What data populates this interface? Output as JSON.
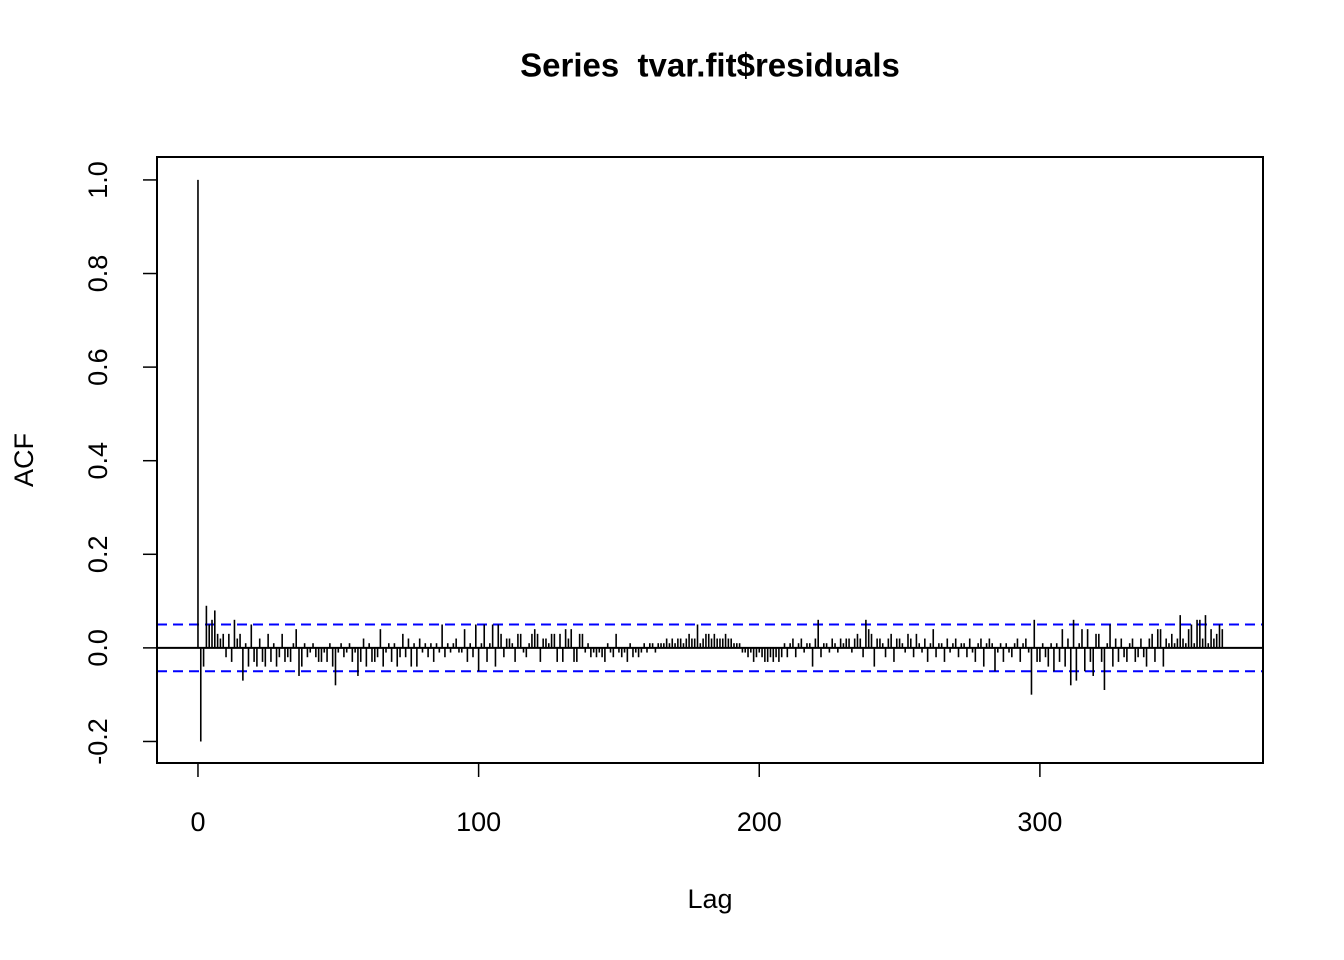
{
  "chart_data": {
    "type": "acf",
    "title": "Series  tvar.fit$residuals",
    "x_label": "Lag",
    "y_label": "ACF",
    "x": [
      0,
      1,
      2,
      3,
      4,
      5,
      6,
      7,
      8,
      9,
      10,
      11,
      12,
      13,
      14,
      15,
      16,
      17,
      18,
      19,
      20,
      21,
      22,
      23,
      24,
      25,
      26,
      27,
      28,
      29,
      30,
      31,
      32,
      33,
      34,
      35,
      36,
      37,
      38,
      39,
      40,
      41,
      42,
      43,
      44,
      45,
      46,
      47,
      48,
      49,
      50,
      51,
      52,
      53,
      54,
      55,
      56,
      57,
      58,
      59,
      60,
      61,
      62,
      63,
      64,
      65,
      66,
      67,
      68,
      69,
      70,
      71,
      72,
      73,
      74,
      75,
      76,
      77,
      78,
      79,
      80,
      81,
      82,
      83,
      84,
      85,
      86,
      87,
      88,
      89,
      90,
      91,
      92,
      93,
      94,
      95,
      96,
      97,
      98,
      99,
      100,
      101,
      102,
      103,
      104,
      105,
      106,
      107,
      108,
      109,
      110,
      111,
      112,
      113,
      114,
      115,
      116,
      117,
      118,
      119,
      120,
      121,
      122,
      123,
      124,
      125,
      126,
      127,
      128,
      129,
      130,
      131,
      132,
      133,
      134,
      135,
      136,
      137,
      138,
      139,
      140,
      141,
      142,
      143,
      144,
      145,
      146,
      147,
      148,
      149,
      150,
      151,
      152,
      153,
      154,
      155,
      156,
      157,
      158,
      159,
      160,
      161,
      162,
      163,
      164,
      165,
      166,
      167,
      168,
      169,
      170,
      171,
      172,
      173,
      174,
      175,
      176,
      177,
      178,
      179,
      180,
      181,
      182,
      183,
      184,
      185,
      186,
      187,
      188,
      189,
      190,
      191,
      192,
      193,
      194,
      195,
      196,
      197,
      198,
      199,
      200,
      201,
      202,
      203,
      204,
      205,
      206,
      207,
      208,
      209,
      210,
      211,
      212,
      213,
      214,
      215,
      216,
      217,
      218,
      219,
      220,
      221,
      222,
      223,
      224,
      225,
      226,
      227,
      228,
      229,
      230,
      231,
      232,
      233,
      234,
      235,
      236,
      237,
      238,
      239,
      240,
      241,
      242,
      243,
      244,
      245,
      246,
      247,
      248,
      249,
      250,
      251,
      252,
      253,
      254,
      255,
      256,
      257,
      258,
      259,
      260,
      261,
      262,
      263,
      264,
      265,
      266,
      267,
      268,
      269,
      270,
      271,
      272,
      273,
      274,
      275,
      276,
      277,
      278,
      279,
      280,
      281,
      282,
      283,
      284,
      285,
      286,
      287,
      288,
      289,
      290,
      291,
      292,
      293,
      294,
      295,
      296,
      297,
      298,
      299,
      300,
      301,
      302,
      303,
      304,
      305,
      306,
      307,
      308,
      309,
      310,
      311,
      312,
      313,
      314,
      315,
      316,
      317,
      318,
      319,
      320,
      321,
      322,
      323,
      324,
      325,
      326,
      327,
      328,
      329,
      330,
      331,
      332,
      333,
      334,
      335,
      336,
      337,
      338,
      339,
      340,
      341,
      342,
      343,
      344,
      345,
      346,
      347,
      348,
      349,
      350,
      351,
      352,
      353,
      354,
      355,
      356,
      357,
      358,
      359,
      360,
      361,
      362,
      363,
      364,
      365
    ],
    "values": [
      1.0,
      -0.2,
      -0.04,
      0.09,
      0.05,
      0.06,
      0.08,
      0.03,
      0.02,
      0.03,
      -0.02,
      0.03,
      -0.03,
      0.06,
      0.02,
      0.03,
      -0.07,
      0.01,
      -0.04,
      0.05,
      -0.03,
      -0.04,
      0.02,
      -0.03,
      -0.04,
      0.03,
      -0.03,
      0.01,
      -0.04,
      -0.02,
      0.03,
      -0.03,
      -0.02,
      -0.03,
      0.01,
      0.04,
      -0.06,
      -0.04,
      0.01,
      -0.02,
      -0.01,
      0.01,
      -0.02,
      -0.03,
      -0.03,
      -0.01,
      -0.03,
      0.01,
      -0.04,
      -0.08,
      -0.01,
      0.01,
      -0.02,
      -0.01,
      0.01,
      -0.03,
      -0.01,
      -0.06,
      -0.03,
      0.02,
      -0.04,
      0.01,
      -0.03,
      -0.03,
      -0.02,
      0.04,
      -0.04,
      -0.01,
      0.01,
      -0.03,
      0.01,
      -0.04,
      -0.02,
      0.03,
      -0.02,
      0.02,
      -0.04,
      0.01,
      -0.04,
      0.02,
      -0.01,
      0.01,
      -0.02,
      0.01,
      -0.03,
      0.01,
      -0.01,
      0.05,
      -0.02,
      0.01,
      -0.01,
      0.01,
      0.02,
      -0.01,
      -0.01,
      0.04,
      -0.03,
      0.01,
      -0.02,
      0.05,
      -0.05,
      0.01,
      0.05,
      -0.03,
      0.01,
      0.05,
      -0.04,
      0.05,
      0.03,
      -0.02,
      0.02,
      0.02,
      0.01,
      -0.03,
      0.03,
      0.03,
      -0.01,
      -0.02,
      0.01,
      0.03,
      0.04,
      0.03,
      -0.03,
      0.02,
      0.02,
      0.01,
      0.03,
      0.03,
      -0.03,
      0.03,
      -0.03,
      0.04,
      0.02,
      0.04,
      -0.03,
      -0.03,
      0.03,
      0.03,
      -0.01,
      0.01,
      -0.02,
      -0.01,
      -0.02,
      -0.01,
      -0.02,
      -0.03,
      0.01,
      -0.01,
      -0.02,
      0.03,
      -0.01,
      -0.02,
      -0.01,
      -0.03,
      0.01,
      -0.02,
      -0.01,
      -0.02,
      -0.01,
      0.01,
      -0.01,
      0.01,
      0.01,
      -0.01,
      0.01,
      0.01,
      0.01,
      0.02,
      0.01,
      0.02,
      0.01,
      0.02,
      0.02,
      0.01,
      0.02,
      0.03,
      0.02,
      0.02,
      0.05,
      0.01,
      0.02,
      0.03,
      0.03,
      0.02,
      0.03,
      0.02,
      0.02,
      0.02,
      0.03,
      0.02,
      0.02,
      0.01,
      0.01,
      0.01,
      -0.01,
      -0.01,
      -0.02,
      -0.01,
      -0.03,
      -0.02,
      -0.01,
      -0.02,
      -0.03,
      -0.03,
      -0.02,
      -0.03,
      -0.02,
      -0.03,
      -0.02,
      0.01,
      -0.02,
      0.01,
      0.02,
      -0.02,
      0.01,
      0.02,
      -0.01,
      0.01,
      0.01,
      -0.04,
      0.02,
      0.06,
      -0.02,
      0.01,
      0.01,
      -0.01,
      0.02,
      0.01,
      -0.01,
      0.02,
      0.01,
      0.02,
      0.02,
      -0.01,
      0.02,
      0.03,
      0.02,
      -0.02,
      0.06,
      0.04,
      0.03,
      -0.04,
      0.02,
      0.02,
      0.01,
      -0.02,
      0.02,
      0.03,
      -0.03,
      0.02,
      0.02,
      0.01,
      -0.01,
      0.03,
      0.02,
      -0.02,
      0.03,
      0.01,
      -0.01,
      0.02,
      -0.03,
      0.01,
      0.04,
      -0.02,
      0.01,
      0.01,
      -0.03,
      0.02,
      -0.01,
      0.01,
      0.02,
      -0.02,
      0.01,
      0.01,
      -0.02,
      0.02,
      -0.01,
      -0.03,
      0.01,
      0.02,
      -0.04,
      0.01,
      0.02,
      0.01,
      -0.05,
      -0.01,
      0.01,
      -0.03,
      0.01,
      -0.01,
      -0.02,
      0.01,
      0.02,
      -0.03,
      0.01,
      0.02,
      -0.01,
      -0.1,
      0.06,
      -0.03,
      -0.03,
      0.01,
      -0.02,
      -0.04,
      0.01,
      -0.05,
      0.01,
      -0.03,
      0.04,
      -0.04,
      0.02,
      -0.08,
      0.06,
      -0.07,
      0.01,
      0.04,
      -0.05,
      0.04,
      -0.03,
      -0.06,
      0.03,
      0.03,
      -0.03,
      -0.09,
      0.01,
      0.05,
      -0.04,
      0.02,
      -0.03,
      0.02,
      -0.02,
      -0.03,
      0.01,
      0.02,
      -0.03,
      -0.02,
      0.02,
      -0.02,
      -0.04,
      0.02,
      0.03,
      -0.03,
      0.04,
      0.04,
      -0.04,
      0.02,
      0.01,
      0.03,
      0.01,
      0.02,
      0.07,
      0.02,
      0.01,
      0.04,
      0.05,
      0.01,
      0.06,
      0.06,
      0.02,
      0.07,
      0.01,
      0.04,
      0.02,
      0.03,
      0.05,
      0.04
    ],
    "color": "#000000",
    "ci": 0.05,
    "ci_color": "#0000ff",
    "xlim": [
      -14.6,
      379.5
    ],
    "xticks": [
      0,
      100,
      200,
      300
    ],
    "ylim": [
      -0.246,
      1.049
    ],
    "yticks": [
      -0.2,
      {
        "value": 0,
        "label": "0.0"
      },
      0.2,
      0.4,
      0.6,
      0.8,
      {
        "value": 1,
        "label": "1.0"
      }
    ]
  }
}
